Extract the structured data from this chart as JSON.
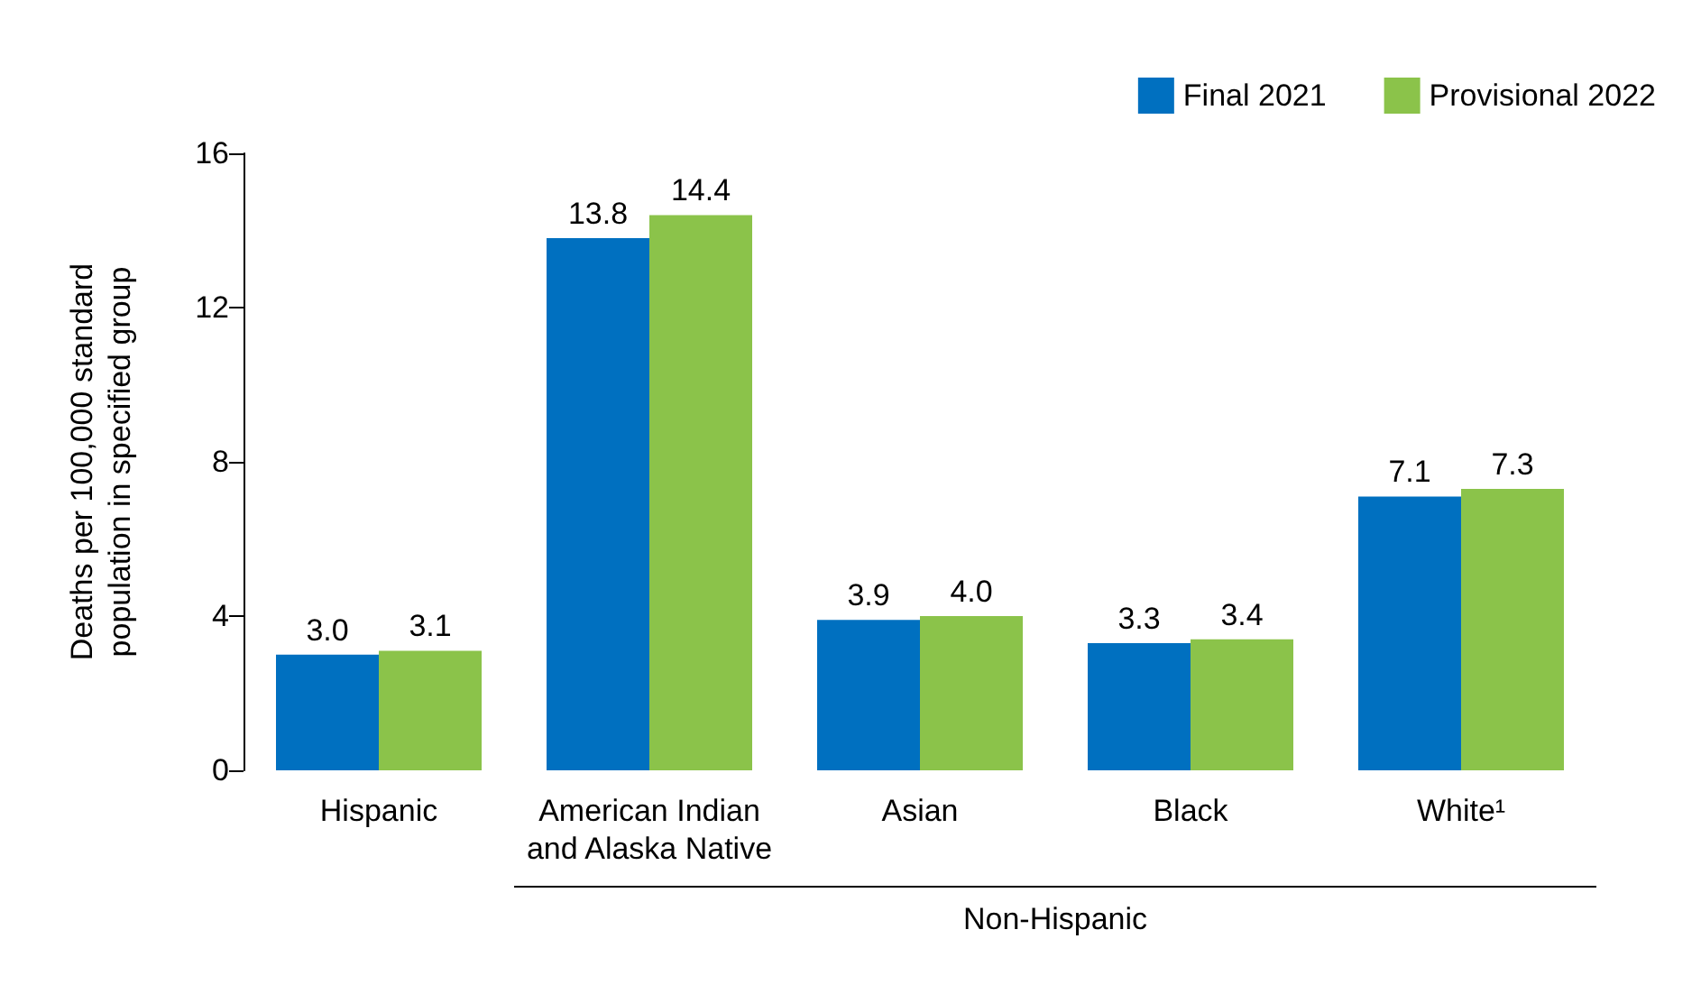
{
  "chart_data": {
    "type": "bar",
    "ylabel": "Deaths per 100,000 standard population in specified group",
    "categories": [
      "Hispanic",
      "American Indian\nand Alaska Native",
      "Asian",
      "Black",
      "White¹"
    ],
    "series": [
      {
        "name": "Final 2021",
        "color": "#0070c0",
        "values": [
          3.0,
          13.8,
          3.9,
          3.3,
          7.1
        ],
        "value_labels": [
          "3.0",
          "13.8",
          "3.9",
          "3.3",
          "7.1"
        ]
      },
      {
        "name": "Provisional 2022",
        "color": "#8bc34a",
        "values": [
          3.1,
          14.4,
          4.0,
          3.4,
          7.3
        ],
        "value_labels": [
          "3.1",
          "14.4",
          "4.0",
          "3.4",
          "7.3"
        ]
      }
    ],
    "ylim": [
      0,
      16
    ],
    "yticks": [
      0,
      4,
      8,
      12,
      16
    ],
    "grid": false,
    "legend": "top right",
    "annotations": [
      "Non-Hispanic"
    ]
  }
}
